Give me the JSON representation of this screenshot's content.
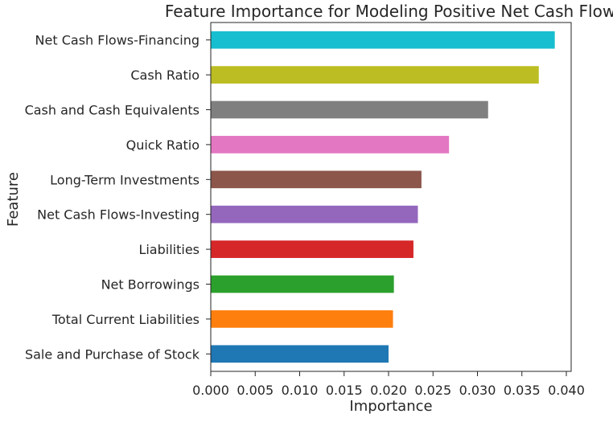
{
  "chart_data": {
    "type": "bar",
    "orientation": "horizontal",
    "title": "Feature Importance for Modeling Positive Net Cash Flow",
    "xlabel": "Importance",
    "ylabel": "Feature",
    "xlim": [
      0.0,
      0.0405
    ],
    "xticks": [
      "0.000",
      "0.005",
      "0.010",
      "0.015",
      "0.020",
      "0.025",
      "0.030",
      "0.035",
      "0.040"
    ],
    "grid": false,
    "legend": "none",
    "categories": [
      "Sale and Purchase of Stock",
      "Total Current Liabilities",
      "Net Borrowings",
      "Liabilities",
      "Net Cash Flows-Investing",
      "Long-Term Investments",
      "Quick Ratio",
      "Cash and Cash Equivalents",
      "Cash Ratio",
      "Net Cash Flows-Financing"
    ],
    "values": [
      0.02,
      0.0205,
      0.0206,
      0.0228,
      0.0233,
      0.0237,
      0.0268,
      0.0312,
      0.0369,
      0.0387
    ],
    "colors": [
      "#1f77b4",
      "#ff7f0e",
      "#2ca02c",
      "#d62728",
      "#9467bd",
      "#8c564b",
      "#e377c2",
      "#7f7f7f",
      "#bcbd22",
      "#17becf"
    ]
  }
}
